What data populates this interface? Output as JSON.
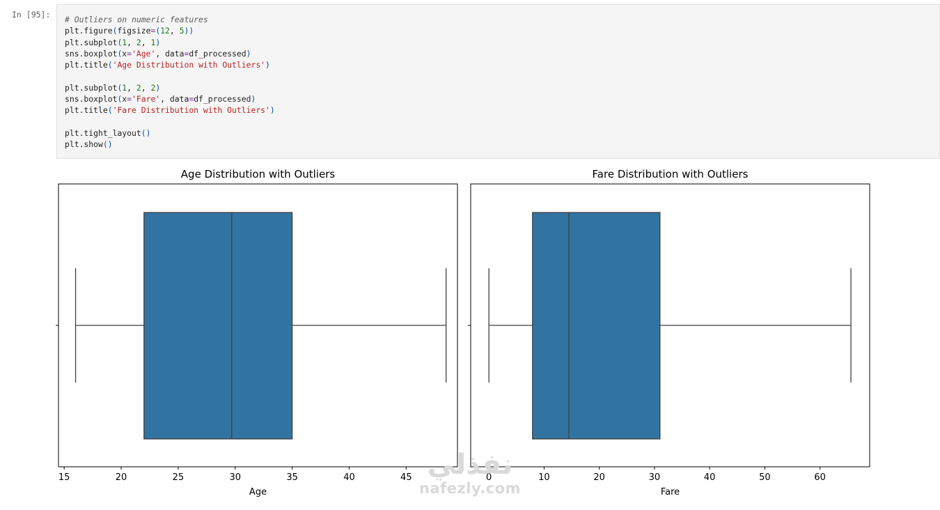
{
  "cell": {
    "prompt": "In [95]:",
    "code_lines": [
      [
        {
          "t": "# Outliers on numeric features",
          "k": "comment"
        }
      ],
      [
        {
          "t": "plt.figure",
          "k": ""
        },
        {
          "t": "(",
          "k": "paren"
        },
        {
          "t": "figsize",
          "k": ""
        },
        {
          "t": "=",
          "k": "op"
        },
        {
          "t": "(",
          "k": "paren"
        },
        {
          "t": "12",
          "k": "num"
        },
        {
          "t": ", ",
          "k": ""
        },
        {
          "t": "5",
          "k": "num"
        },
        {
          "t": "))",
          "k": "paren"
        }
      ],
      [
        {
          "t": "plt.subplot",
          "k": ""
        },
        {
          "t": "(",
          "k": "paren"
        },
        {
          "t": "1",
          "k": "num"
        },
        {
          "t": ", ",
          "k": ""
        },
        {
          "t": "2",
          "k": "num"
        },
        {
          "t": ", ",
          "k": ""
        },
        {
          "t": "1",
          "k": "num"
        },
        {
          "t": ")",
          "k": "paren"
        }
      ],
      [
        {
          "t": "sns.boxplot",
          "k": ""
        },
        {
          "t": "(",
          "k": "paren"
        },
        {
          "t": "x",
          "k": ""
        },
        {
          "t": "=",
          "k": "op"
        },
        {
          "t": "'Age'",
          "k": "str"
        },
        {
          "t": ", data",
          "k": ""
        },
        {
          "t": "=",
          "k": "op"
        },
        {
          "t": "df_processed",
          "k": ""
        },
        {
          "t": ")",
          "k": "paren"
        }
      ],
      [
        {
          "t": "plt.title",
          "k": ""
        },
        {
          "t": "(",
          "k": "paren"
        },
        {
          "t": "'Age Distribution with Outliers'",
          "k": "str"
        },
        {
          "t": ")",
          "k": "paren"
        }
      ],
      [],
      [
        {
          "t": "plt.subplot",
          "k": ""
        },
        {
          "t": "(",
          "k": "paren"
        },
        {
          "t": "1",
          "k": "num"
        },
        {
          "t": ", ",
          "k": ""
        },
        {
          "t": "2",
          "k": "num"
        },
        {
          "t": ", ",
          "k": ""
        },
        {
          "t": "2",
          "k": "num"
        },
        {
          "t": ")",
          "k": "paren"
        }
      ],
      [
        {
          "t": "sns.boxplot",
          "k": ""
        },
        {
          "t": "(",
          "k": "paren"
        },
        {
          "t": "x",
          "k": ""
        },
        {
          "t": "=",
          "k": "op"
        },
        {
          "t": "'Fare'",
          "k": "str"
        },
        {
          "t": ", data",
          "k": ""
        },
        {
          "t": "=",
          "k": "op"
        },
        {
          "t": "df_processed",
          "k": ""
        },
        {
          "t": ")",
          "k": "paren"
        }
      ],
      [
        {
          "t": "plt.title",
          "k": ""
        },
        {
          "t": "(",
          "k": "paren"
        },
        {
          "t": "'Fare Distribution with Outliers'",
          "k": "str"
        },
        {
          "t": ")",
          "k": "paren"
        }
      ],
      [],
      [
        {
          "t": "plt.tight_layout",
          "k": ""
        },
        {
          "t": "()",
          "k": "paren"
        }
      ],
      [
        {
          "t": "plt.show",
          "k": ""
        },
        {
          "t": "()",
          "k": "paren"
        }
      ]
    ]
  },
  "chart_data": [
    {
      "type": "box",
      "title": "Age Distribution with Outliers",
      "xlabel": "Age",
      "ylabel": "",
      "xlim": [
        14.5,
        49.5
      ],
      "xticks": [
        15,
        20,
        25,
        30,
        35,
        40,
        45
      ],
      "box": {
        "whisker_low": 16,
        "q1": 22,
        "median": 29.7,
        "q3": 35,
        "whisker_high": 48.5
      },
      "color": "#3274a1",
      "line_color": "#3f3f3f",
      "grid": false
    },
    {
      "type": "box",
      "title": "Fare Distribution with Outliers",
      "xlabel": "Fare",
      "ylabel": "",
      "xlim": [
        -3.3,
        69.0
      ],
      "xticks": [
        0,
        10,
        20,
        30,
        40,
        50,
        60
      ],
      "box": {
        "whisker_low": 0,
        "q1": 7.9,
        "median": 14.5,
        "q3": 31.0,
        "whisker_high": 65.6
      },
      "color": "#3274a1",
      "line_color": "#3f3f3f",
      "grid": false
    }
  ],
  "watermark": {
    "arabic": "نفذلي",
    "latin": "nafezly.com"
  }
}
